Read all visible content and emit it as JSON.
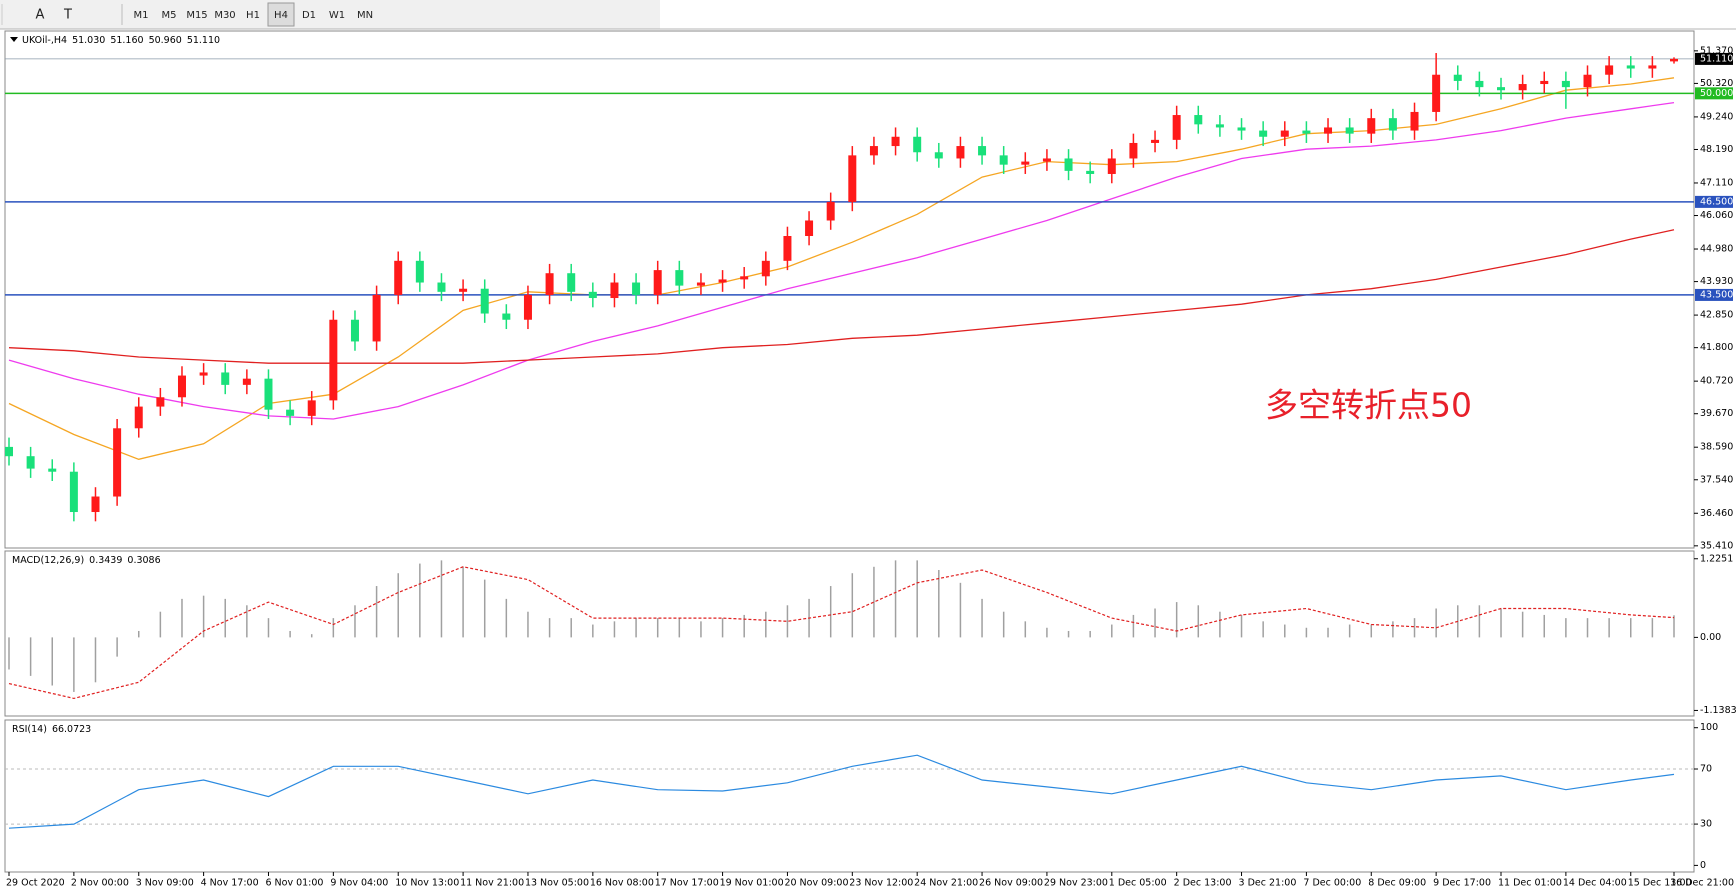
{
  "toolbar": {
    "tools": [
      "A",
      "T"
    ],
    "periods": [
      "M1",
      "M5",
      "M15",
      "M30",
      "H1",
      "H4",
      "D1",
      "W1",
      "MN"
    ],
    "active": "H4"
  },
  "chart_data": [
    {
      "type": "candlestick",
      "title": "UKOil-,H4",
      "header_values": [
        "51.030",
        "51.160",
        "50.960",
        "51.110"
      ],
      "categories": [
        "29 Oct 2020",
        null,
        null,
        "2 Nov 00:00",
        null,
        null,
        "3 Nov 09:00",
        null,
        null,
        "4 Nov 17:00",
        null,
        null,
        "6 Nov 01:00",
        null,
        null,
        "9 Nov 04:00",
        null,
        null,
        "10 Nov 13:00",
        null,
        null,
        "11 Nov 21:00",
        null,
        null,
        "13 Nov 05:00",
        null,
        null,
        "16 Nov 08:00",
        null,
        null,
        "17 Nov 17:00",
        null,
        null,
        "19 Nov 01:00",
        null,
        null,
        "20 Nov 09:00",
        null,
        null,
        "23 Nov 12:00",
        null,
        null,
        "24 Nov 21:00",
        null,
        null,
        "26 Nov 09:00",
        null,
        null,
        "29 Nov 23:00",
        null,
        null,
        "1 Dec 05:00",
        null,
        null,
        "2 Dec 13:00",
        null,
        null,
        "3 Dec 21:00",
        null,
        null,
        "7 Dec 00:00",
        null,
        null,
        "8 Dec 09:00",
        null,
        null,
        "9 Dec 17:00",
        null,
        null,
        "11 Dec 01:00",
        null,
        null,
        "14 Dec 04:00",
        null,
        null,
        "15 Dec 13:00",
        null,
        "16 Dec 21:00"
      ],
      "open": [
        38.6,
        38.3,
        37.9,
        37.8,
        36.5,
        37.0,
        39.2,
        39.9,
        40.2,
        40.9,
        41.0,
        40.6,
        40.8,
        39.8,
        39.6,
        40.1,
        42.7,
        42.0,
        43.5,
        44.6,
        43.9,
        43.6,
        43.7,
        42.9,
        42.7,
        43.5,
        44.2,
        43.6,
        43.4,
        43.9,
        43.5,
        44.3,
        43.8,
        43.9,
        44.0,
        44.1,
        44.6,
        45.4,
        45.9,
        46.5,
        48.0,
        48.3,
        48.6,
        48.1,
        47.9,
        48.3,
        48.0,
        47.7,
        47.8,
        47.9,
        47.5,
        47.4,
        47.9,
        48.4,
        48.5,
        49.3,
        49.0,
        48.9,
        48.8,
        48.6,
        48.8,
        48.7,
        48.9,
        48.7,
        49.2,
        48.8,
        49.4,
        50.6,
        50.4,
        50.2,
        50.1,
        50.3,
        50.4,
        50.2,
        50.6,
        50.9,
        50.8,
        51.03
      ],
      "high": [
        38.9,
        38.6,
        38.2,
        38.1,
        37.3,
        39.5,
        40.2,
        40.5,
        41.2,
        41.3,
        41.3,
        41.1,
        41.1,
        40.1,
        40.4,
        43.0,
        43.0,
        43.8,
        44.9,
        44.9,
        44.2,
        44.0,
        44.0,
        43.2,
        43.8,
        44.5,
        44.5,
        43.9,
        44.2,
        44.2,
        44.6,
        44.6,
        44.2,
        44.3,
        44.4,
        44.9,
        45.7,
        46.2,
        46.8,
        48.3,
        48.6,
        48.9,
        48.9,
        48.4,
        48.6,
        48.6,
        48.3,
        48.1,
        48.2,
        48.2,
        47.8,
        48.2,
        48.7,
        48.8,
        49.6,
        49.6,
        49.3,
        49.2,
        49.1,
        49.1,
        49.1,
        49.2,
        49.2,
        49.5,
        49.5,
        49.7,
        51.3,
        50.9,
        50.7,
        50.5,
        50.6,
        50.7,
        50.7,
        50.9,
        51.2,
        51.2,
        51.2,
        51.16
      ],
      "low": [
        38.0,
        37.6,
        37.5,
        36.2,
        36.2,
        36.7,
        38.9,
        39.6,
        39.9,
        40.6,
        40.3,
        40.3,
        39.5,
        39.3,
        39.3,
        39.8,
        41.7,
        41.7,
        43.2,
        43.6,
        43.3,
        43.3,
        42.6,
        42.4,
        42.4,
        43.2,
        43.3,
        43.1,
        43.1,
        43.2,
        43.2,
        43.5,
        43.5,
        43.6,
        43.7,
        43.8,
        44.3,
        45.1,
        45.6,
        46.2,
        47.7,
        48.0,
        47.8,
        47.6,
        47.6,
        47.7,
        47.4,
        47.4,
        47.5,
        47.2,
        47.1,
        47.1,
        47.6,
        48.1,
        48.2,
        48.7,
        48.6,
        48.5,
        48.3,
        48.3,
        48.4,
        48.4,
        48.4,
        48.4,
        48.5,
        48.5,
        49.1,
        50.1,
        49.9,
        49.8,
        49.8,
        50.0,
        49.5,
        49.9,
        50.3,
        50.5,
        50.5,
        50.96
      ],
      "close": [
        38.3,
        37.9,
        37.8,
        36.5,
        37.0,
        39.2,
        39.9,
        40.2,
        40.9,
        41.0,
        40.6,
        40.8,
        39.8,
        39.6,
        40.1,
        42.7,
        42.0,
        43.5,
        44.6,
        43.9,
        43.6,
        43.7,
        42.9,
        42.7,
        43.5,
        44.2,
        43.6,
        43.4,
        43.9,
        43.5,
        44.3,
        43.8,
        43.9,
        44.0,
        44.1,
        44.6,
        45.4,
        45.9,
        46.5,
        48.0,
        48.3,
        48.6,
        48.1,
        47.9,
        48.3,
        48.0,
        47.7,
        47.8,
        47.9,
        47.5,
        47.4,
        47.9,
        48.4,
        48.5,
        49.3,
        49.0,
        48.9,
        48.8,
        48.6,
        48.8,
        48.7,
        48.9,
        48.7,
        49.2,
        48.8,
        49.4,
        50.6,
        50.4,
        50.2,
        50.1,
        50.3,
        50.4,
        50.2,
        50.6,
        50.9,
        50.8,
        50.9,
        51.11
      ],
      "up_color": "#ff1a1a",
      "down_color": "#19e07a",
      "overlays": [
        {
          "color": "#f5a623",
          "x": [
            0,
            3,
            6,
            9,
            12,
            15,
            18,
            21,
            24,
            27,
            30,
            33,
            36,
            39,
            42,
            45,
            48,
            51,
            54,
            57,
            60,
            63,
            66,
            69,
            72,
            75,
            77
          ],
          "values": [
            40.0,
            39.0,
            38.2,
            38.7,
            40.0,
            40.3,
            41.5,
            43.0,
            43.6,
            43.5,
            43.5,
            43.9,
            44.4,
            45.2,
            46.1,
            47.3,
            47.8,
            47.7,
            47.8,
            48.2,
            48.7,
            48.8,
            49.0,
            49.5,
            50.1,
            50.3,
            50.5
          ]
        },
        {
          "color": "#ee3bee",
          "x": [
            0,
            3,
            6,
            9,
            12,
            15,
            18,
            21,
            24,
            27,
            30,
            33,
            36,
            39,
            42,
            45,
            48,
            51,
            54,
            57,
            60,
            63,
            66,
            69,
            72,
            75,
            77
          ],
          "values": [
            41.4,
            40.8,
            40.3,
            39.9,
            39.6,
            39.5,
            39.9,
            40.6,
            41.4,
            42.0,
            42.5,
            43.1,
            43.7,
            44.2,
            44.7,
            45.3,
            45.9,
            46.6,
            47.3,
            47.9,
            48.2,
            48.3,
            48.5,
            48.8,
            49.2,
            49.5,
            49.7
          ]
        },
        {
          "color": "#e02020",
          "x": [
            0,
            3,
            6,
            9,
            12,
            15,
            18,
            21,
            24,
            27,
            30,
            33,
            36,
            39,
            42,
            45,
            48,
            51,
            54,
            57,
            60,
            63,
            66,
            69,
            72,
            75,
            77
          ],
          "values": [
            41.8,
            41.7,
            41.5,
            41.4,
            41.3,
            41.3,
            41.3,
            41.3,
            41.4,
            41.5,
            41.6,
            41.8,
            41.9,
            42.1,
            42.2,
            42.4,
            42.6,
            42.8,
            43.0,
            43.2,
            43.5,
            43.7,
            44.0,
            44.4,
            44.8,
            45.3,
            45.6
          ]
        }
      ],
      "hlines": [
        {
          "value": 50,
          "label": "50.000",
          "color": "#22bb22"
        },
        {
          "value": 46.5,
          "label": "46.500",
          "color": "#2a52be"
        },
        {
          "value": 43.5,
          "label": "43.500",
          "color": "#2a52be"
        }
      ],
      "current_price": {
        "value": 51.11,
        "label": "51.110"
      },
      "annotation": {
        "text": "多空转折点50",
        "color": "#e8202a"
      },
      "ylim": [
        35.34,
        52.01
      ],
      "yticks": [
        {
          "value": 51.37,
          "label": "51.370"
        },
        {
          "value": 50.32,
          "label": "50.320"
        },
        {
          "value": 49.24,
          "label": "49.240"
        },
        {
          "value": 48.19,
          "label": "48.190"
        },
        {
          "value": 47.11,
          "label": "47.110"
        },
        {
          "value": 46.06,
          "label": "46.060"
        },
        {
          "value": 44.98,
          "label": "44.980"
        },
        {
          "value": 43.93,
          "label": "43.930"
        },
        {
          "value": 42.85,
          "label": "42.850"
        },
        {
          "value": 41.8,
          "label": "41.800"
        },
        {
          "value": 40.72,
          "label": "40.720"
        },
        {
          "value": 39.67,
          "label": "39.670"
        },
        {
          "value": 38.59,
          "label": "38.590"
        },
        {
          "value": 37.54,
          "label": "37.540"
        },
        {
          "value": 36.46,
          "label": "36.460"
        },
        {
          "value": 35.41,
          "label": "35.410"
        }
      ]
    },
    {
      "type": "macd",
      "title": "MACD(12,26,9)",
      "header_values": [
        "0.3439",
        "0.3086"
      ],
      "values": [
        -0.5,
        -0.6,
        -0.75,
        -0.85,
        -0.7,
        -0.3,
        0.1,
        0.4,
        0.6,
        0.65,
        0.6,
        0.5,
        0.3,
        0.1,
        0.05,
        0.3,
        0.5,
        0.8,
        1.0,
        1.15,
        1.2,
        1.1,
        0.9,
        0.6,
        0.4,
        0.3,
        0.3,
        0.2,
        0.25,
        0.3,
        0.3,
        0.3,
        0.25,
        0.3,
        0.35,
        0.4,
        0.5,
        0.6,
        0.8,
        1.0,
        1.1,
        1.2,
        1.2,
        1.05,
        0.85,
        0.6,
        0.4,
        0.25,
        0.15,
        0.1,
        0.1,
        0.2,
        0.35,
        0.45,
        0.55,
        0.5,
        0.4,
        0.35,
        0.25,
        0.2,
        0.15,
        0.15,
        0.2,
        0.2,
        0.25,
        0.3,
        0.45,
        0.5,
        0.5,
        0.45,
        0.4,
        0.35,
        0.3,
        0.3,
        0.3,
        0.3,
        0.3,
        0.3439
      ],
      "color": "#a0a0a0",
      "signal": {
        "color": "#e02020",
        "x": [
          0,
          3,
          6,
          9,
          12,
          15,
          18,
          21,
          24,
          27,
          30,
          33,
          36,
          39,
          42,
          45,
          48,
          51,
          54,
          57,
          60,
          63,
          66,
          69,
          72,
          75,
          77
        ],
        "values": [
          -0.72,
          -0.95,
          -0.7,
          0.1,
          0.55,
          0.2,
          0.7,
          1.1,
          0.9,
          0.3,
          0.3,
          0.3,
          0.25,
          0.4,
          0.85,
          1.05,
          0.7,
          0.3,
          0.1,
          0.35,
          0.45,
          0.2,
          0.15,
          0.45,
          0.45,
          0.35,
          0.3086
        ]
      },
      "ylim": [
        -1.225,
        1.346
      ],
      "yticks": [
        1.2251,
        {
          "value": 0,
          "label": "0.00"
        },
        -1.1383
      ]
    },
    {
      "type": "line",
      "title": "RSI(14)",
      "header_values": [
        "66.0723"
      ],
      "color": "#2b8ae0",
      "x": [
        0,
        3,
        6,
        9,
        12,
        15,
        18,
        21,
        24,
        27,
        30,
        33,
        36,
        39,
        42,
        45,
        48,
        51,
        54,
        57,
        60,
        63,
        66,
        69,
        72,
        75,
        77
      ],
      "values": [
        27,
        30,
        55,
        62,
        50,
        72,
        72,
        62,
        52,
        62,
        55,
        54,
        60,
        72,
        80,
        62,
        57,
        52,
        62,
        72,
        60,
        55,
        62,
        65,
        55,
        62,
        66.0723
      ],
      "levels": [
        70,
        30
      ],
      "ylim": [
        -4.8,
        105.6
      ],
      "yticks": [
        100,
        70,
        30,
        0
      ]
    }
  ]
}
